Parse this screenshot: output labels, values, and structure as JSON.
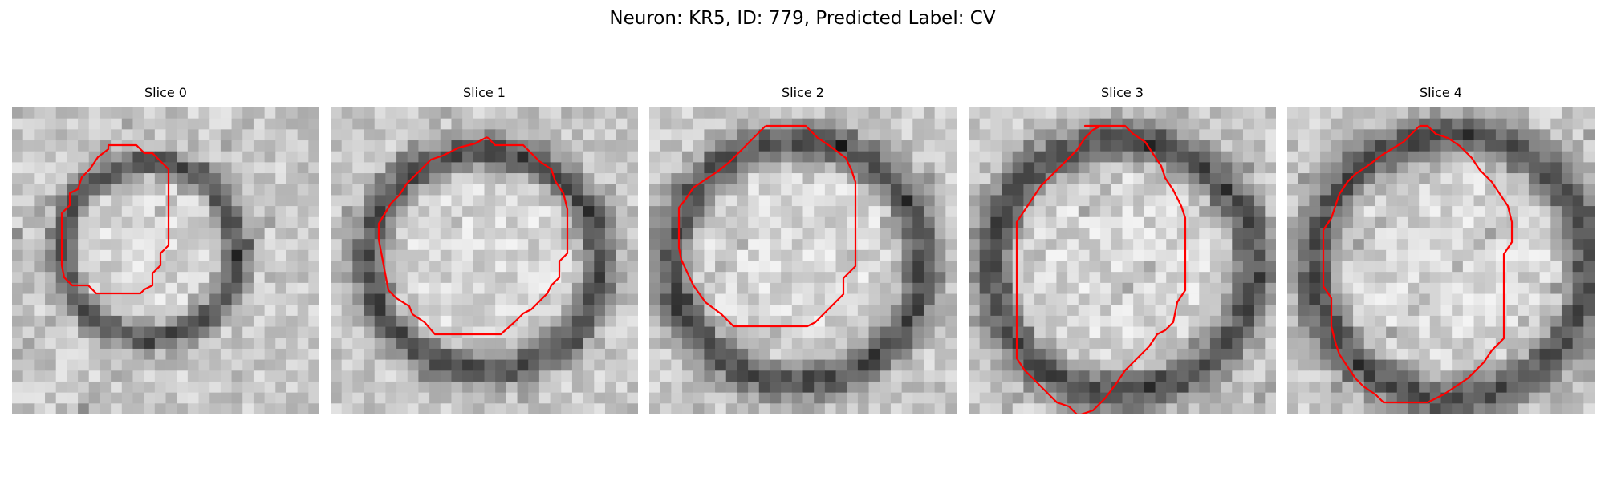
{
  "figure": {
    "title": "Neuron: KR5, ID: 779, Predicted Label: CV",
    "contour_color": "#ff0000",
    "panels": [
      {
        "label": "Slice 0"
      },
      {
        "label": "Slice 1"
      },
      {
        "label": "Slice 2"
      },
      {
        "label": "Slice 3"
      },
      {
        "label": "Slice 4"
      }
    ]
  }
}
